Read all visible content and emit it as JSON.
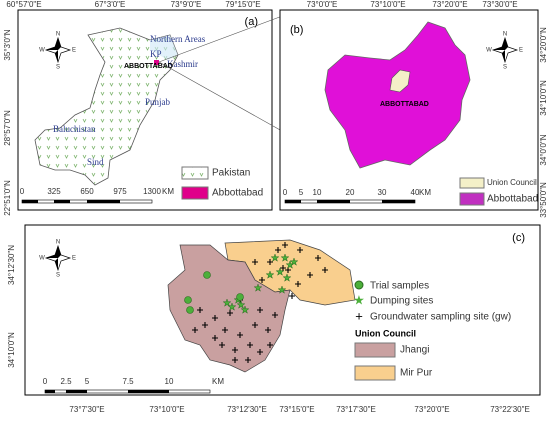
{
  "panel_a": {
    "label": "(a)",
    "top_axis": [
      "60°57'0\"E",
      "67°3'0\"E",
      "73°9'0\"E",
      "79°15'0\"E"
    ],
    "left_axis": [
      "35°3'0\"N",
      "28°57'0\"N",
      "22°51'0\"N"
    ],
    "regions": [
      "Northern Areas",
      "KP",
      "Kashmir",
      "Punjab",
      "Baluchistan",
      "Sind"
    ],
    "place": "ABBOTTABAD",
    "scale": [
      "0",
      "325",
      "650",
      "975",
      "1300",
      "KM"
    ],
    "legend": [
      "Pakistan",
      "Abbottabad"
    ]
  },
  "panel_b": {
    "label": "(b)",
    "top_axis": [
      "73°0'0\"E",
      "73°10'0\"E",
      "73°20'0\"E",
      "73°30'0\"E"
    ],
    "right_axis": [
      "34°20'0\"N",
      "34°10'0\"N",
      "34°0'0\"N",
      "33°50'0\"N"
    ],
    "place": "ABBOTTABAD",
    "scale": [
      "0",
      "5",
      "10",
      "20",
      "30",
      "40",
      "KM"
    ],
    "legend": [
      "Union Council",
      "Abbottabad"
    ]
  },
  "panel_c": {
    "label": "(c)",
    "bottom_axis": [
      "73°7'30\"E",
      "73°10'0\"E",
      "73°12'30\"E",
      "73°15'0\"E",
      "73°17'30\"E",
      "73°20'0\"E",
      "73°22'30\"E"
    ],
    "left_axis": [
      "34°12'30\"N",
      "34°10'0\"N"
    ],
    "legend": [
      "Trial samples",
      "Dumping sites",
      "Groundwater sampling site (gw)"
    ],
    "legend_title": "Union Council",
    "union_councils": [
      "Jhangi",
      "Mir Pur"
    ],
    "scale": [
      "0",
      "2.5",
      "5",
      "7.5",
      "10",
      "KM"
    ]
  },
  "compass": [
    "N",
    "S",
    "E",
    "W"
  ]
}
